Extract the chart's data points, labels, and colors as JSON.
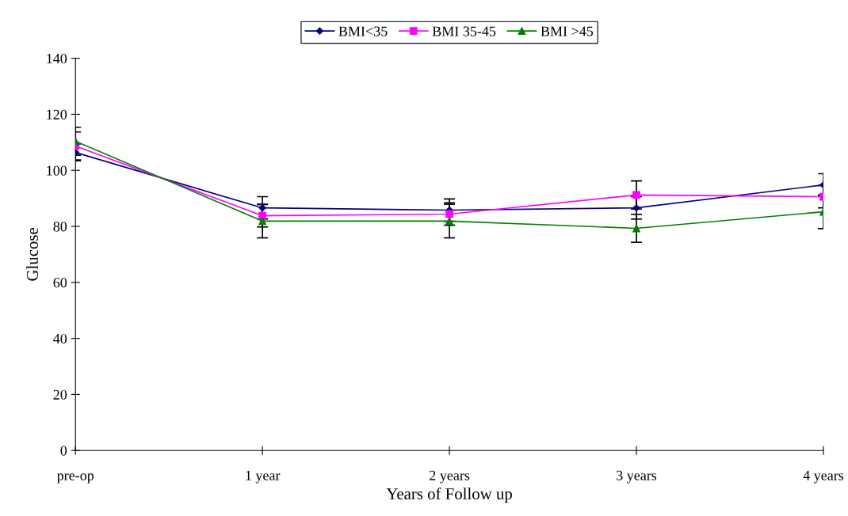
{
  "chart_data": {
    "type": "line",
    "xlabel": "Years of Follow up",
    "ylabel": "Glucose",
    "categories": [
      "pre-op",
      "1 year",
      "2 years",
      "3 years",
      "4 years"
    ],
    "ylim": [
      0,
      140
    ],
    "yticks": [
      0,
      20,
      40,
      60,
      80,
      100,
      120,
      140
    ],
    "grid": false,
    "legend": "top",
    "series": [
      {
        "name": "BMI<35",
        "color": "#000080",
        "marker": "diamond",
        "values": [
          106.4,
          86.6,
          85.8,
          86.6,
          94.8
        ],
        "errors": [
          3,
          4,
          4,
          4,
          4
        ]
      },
      {
        "name": "BMI 35-45",
        "color": "#ff00ff",
        "marker": "square",
        "values": [
          108.7,
          83.8,
          84.4,
          91.2,
          90.6
        ],
        "errors": [
          5,
          4,
          4,
          5,
          4
        ]
      },
      {
        "name": "BMI >45",
        "color": "#008000",
        "marker": "triangle",
        "values": [
          110.4,
          81.9,
          81.9,
          79.3,
          85.2
        ],
        "errors": [
          5,
          6,
          6,
          5,
          6
        ]
      }
    ]
  }
}
